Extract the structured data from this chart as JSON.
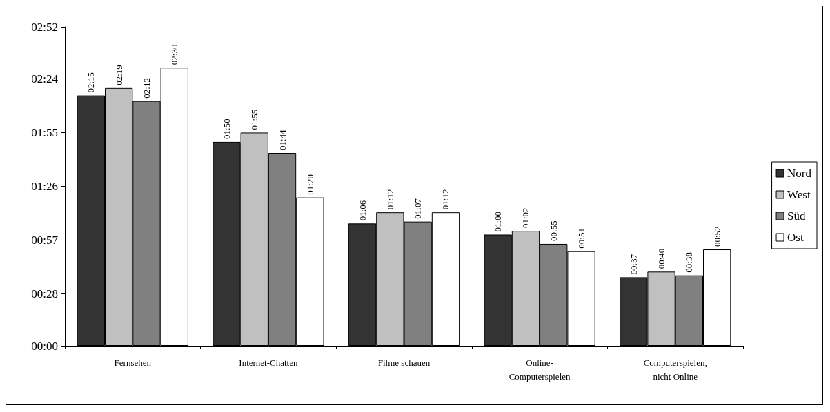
{
  "chart_data": {
    "type": "bar",
    "categories": [
      "Fernsehen",
      "Internet-Chatten",
      "Filme schauen",
      "Online-\nComputerspielen",
      "Computerspielen,\nnicht Online"
    ],
    "series": [
      {
        "name": "Nord",
        "color": "#333333",
        "values": [
          135,
          110,
          66,
          60,
          37
        ],
        "value_labels": [
          "02:15",
          "01:50",
          "01:06",
          "01:00",
          "00:37"
        ]
      },
      {
        "name": "West",
        "color": "#c0c0c0",
        "values": [
          139,
          115,
          72,
          62,
          40
        ],
        "value_labels": [
          "02:19",
          "01:55",
          "01:12",
          "01:02",
          "00:40"
        ]
      },
      {
        "name": "Süd",
        "color": "#808080",
        "values": [
          132,
          104,
          67,
          55,
          38
        ],
        "value_labels": [
          "02:12",
          "01:44",
          "01:07",
          "00:55",
          "00:38"
        ]
      },
      {
        "name": "Ost",
        "color": "#ffffff",
        "values": [
          150,
          80,
          72,
          51,
          52
        ],
        "value_labels": [
          "02:30",
          "01:20",
          "01:12",
          "00:51",
          "00:52"
        ]
      }
    ],
    "ylim": [
      0,
      172
    ],
    "yticks": [
      {
        "value": 0,
        "label": "00:00"
      },
      {
        "value": 28,
        "label": "00:28"
      },
      {
        "value": 57,
        "label": "00:57"
      },
      {
        "value": 86,
        "label": "01:26"
      },
      {
        "value": 115,
        "label": "01:55"
      },
      {
        "value": 144,
        "label": "02:24"
      },
      {
        "value": 172,
        "label": "02:52"
      }
    ],
    "grid": false,
    "legend": "right"
  }
}
